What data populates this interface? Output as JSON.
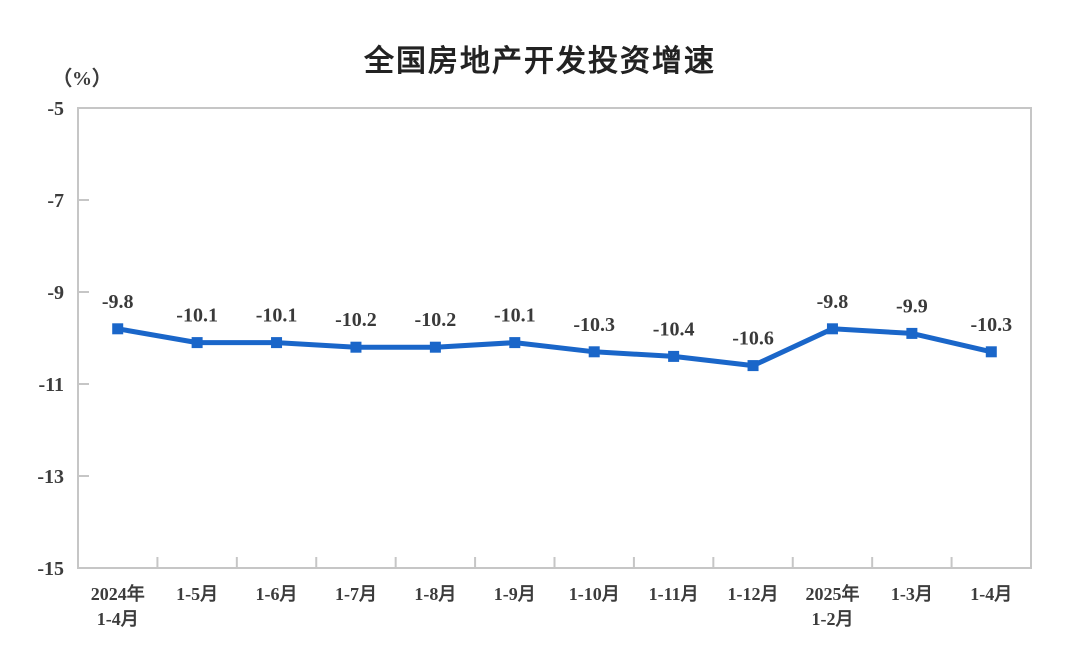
{
  "chart_data": {
    "type": "line",
    "title": "全国房地产开发投资增速",
    "ylabel": "（%）",
    "xlabel": "",
    "categories": [
      "2024年\n1-4月",
      "1-5月",
      "1-6月",
      "1-7月",
      "1-8月",
      "1-9月",
      "1-10月",
      "1-11月",
      "1-12月",
      "2025年\n1-2月",
      "1-3月",
      "1-4月"
    ],
    "values": [
      -9.8,
      -10.1,
      -10.1,
      -10.2,
      -10.2,
      -10.1,
      -10.3,
      -10.4,
      -10.6,
      -9.8,
      -9.9,
      -10.3
    ],
    "data_labels": [
      "-9.8",
      "-10.1",
      "-10.1",
      "-10.2",
      "-10.2",
      "-10.1",
      "-10.3",
      "-10.4",
      "-10.6",
      "-9.8",
      "-9.9",
      "-10.3"
    ],
    "ylim": [
      -15,
      -5
    ],
    "y_ticks": [
      -5,
      -7,
      -9,
      -11,
      -13,
      -15
    ],
    "y_tick_labels": [
      "-5",
      "-7",
      "-9",
      "-11",
      "-13",
      "-15"
    ],
    "grid": false,
    "legend": "none",
    "line_color": "#1a66c9",
    "marker": "square",
    "marker_color": "#1a66c9",
    "axis_color": "#c6c6c6"
  }
}
